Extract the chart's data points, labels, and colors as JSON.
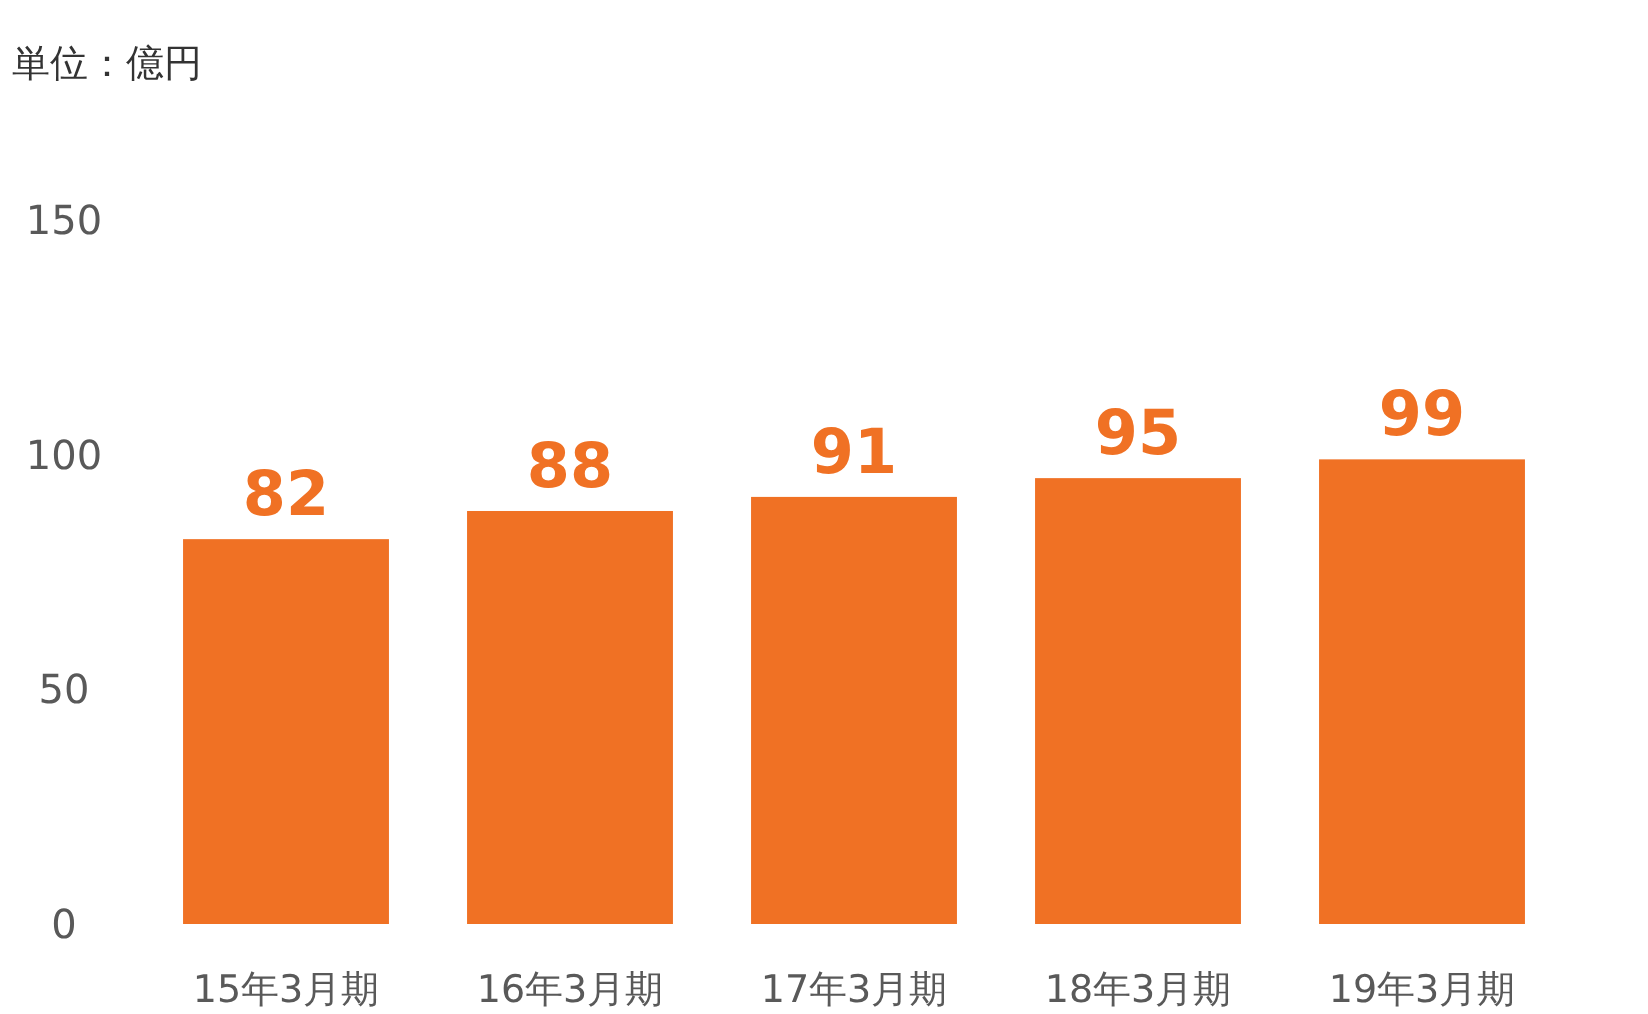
{
  "chart_data": {
    "type": "bar",
    "ylabel": "単位：億円",
    "categories": [
      "15年3月期",
      "16年3月期",
      "17年3月期",
      "18年3月期",
      "19年3月期"
    ],
    "values": [
      82,
      88,
      91,
      95,
      99
    ],
    "color": "#f07124",
    "ylim": [
      0,
      150
    ],
    "yticks": [
      0,
      50,
      100,
      150
    ],
    "data_labels": true,
    "grid": false,
    "legend": false
  }
}
